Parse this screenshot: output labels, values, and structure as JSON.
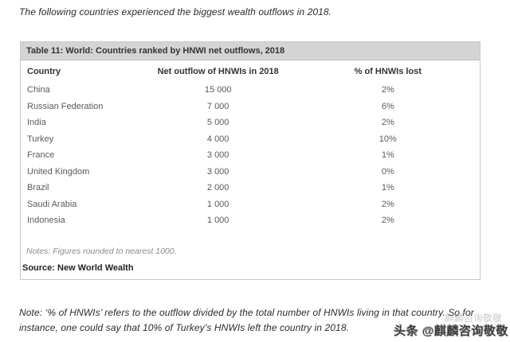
{
  "page": {
    "intro_text": "The following countries experienced the biggest wealth outflows in 2018.",
    "footnote_text": "Note: ‘% of HNWIs’ refers to the outflow divided by the total number of HNWIs living in that country. So for instance, one could say that 10% of Turkey’s HNWIs left the country in 2018.",
    "watermark_text": "头条 @麒麟咨询敬敬",
    "watermark_ghost_text": "麒麟咨询敬敬"
  },
  "table": {
    "title": "Table 11: World: Countries ranked by HNWI net outflows, 2018",
    "columns": {
      "country": "Country",
      "outflow": "Net outflow of HNWIs in 2018",
      "pct_lost": "% of HNWIs lost"
    },
    "rows": [
      {
        "country": "China",
        "outflow": "15 000",
        "pct": "2%"
      },
      {
        "country": "Russian Federation",
        "outflow": "7 000",
        "pct": "6%"
      },
      {
        "country": "India",
        "outflow": "5 000",
        "pct": "2%"
      },
      {
        "country": "Turkey",
        "outflow": "4 000",
        "pct": "10%"
      },
      {
        "country": "France",
        "outflow": "3 000",
        "pct": "1%"
      },
      {
        "country": "United Kingdom",
        "outflow": "3 000",
        "pct": "0%"
      },
      {
        "country": "Brazil",
        "outflow": "2 000",
        "pct": "1%"
      },
      {
        "country": "Saudi Arabia",
        "outflow": "1 000",
        "pct": "2%"
      },
      {
        "country": "Indonesia",
        "outflow": "1 000",
        "pct": "2%"
      }
    ],
    "notes": "Notes: Figures rounded to nearest 1000.",
    "source": "Source: New World Wealth"
  },
  "colors": {
    "header_bar": "#d4d4d4",
    "border": "#c9c9c9"
  }
}
